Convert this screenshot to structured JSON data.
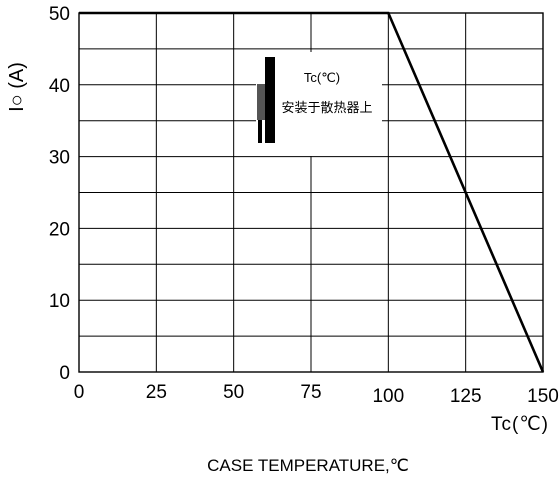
{
  "chart_data": {
    "type": "line",
    "title": "",
    "xlabel": "Tc(℃)",
    "ylabel": "I○ (A)",
    "caption": "CASE TEMPERATURE,℃",
    "xlim": [
      0,
      150
    ],
    "ylim": [
      0,
      50
    ],
    "x_ticks": [
      "0",
      "25",
      "50",
      "75",
      "100",
      "125",
      "150"
    ],
    "y_ticks": [
      "0",
      "10",
      "20",
      "30",
      "40",
      "50"
    ],
    "grid": true,
    "series": [
      {
        "x": [
          0,
          100,
          150
        ],
        "y": [
          50,
          50,
          0
        ]
      }
    ],
    "inset": {
      "line1": "Tc(℃)",
      "line2": "安装于散热器上"
    }
  }
}
